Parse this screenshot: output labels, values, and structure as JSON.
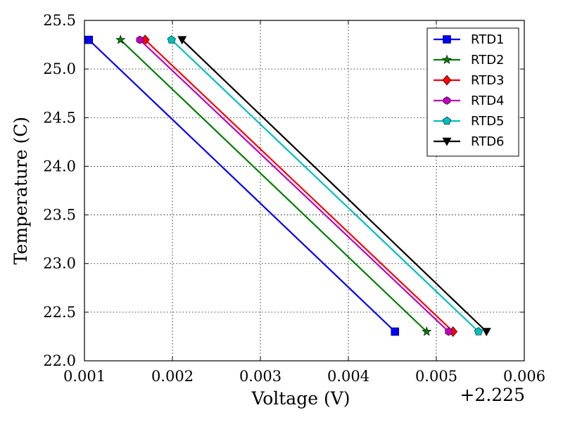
{
  "chart_data": {
    "type": "line",
    "xlabel": "Voltage (V)",
    "ylabel": "Temperature (C)",
    "x_offset_label": "+2.225",
    "x_tick_labels": [
      "0.001",
      "0.002",
      "0.003",
      "0.004",
      "0.005",
      "0.006"
    ],
    "y_tick_labels": [
      "22.0",
      "22.5",
      "23.0",
      "23.5",
      "24.0",
      "24.5",
      "25.0",
      "25.5"
    ],
    "xlim": [
      2.226,
      2.231
    ],
    "ylim": [
      22.0,
      25.5
    ],
    "grid": true,
    "legend_position": "top-right",
    "series": [
      {
        "name": "RTD1",
        "color": "#0000ff",
        "marker": "square",
        "x": [
          2.22605,
          2.22953
        ],
        "y": [
          25.3,
          22.3
        ]
      },
      {
        "name": "RTD2",
        "color": "#008000",
        "marker": "star",
        "x": [
          2.22641,
          2.22989
        ],
        "y": [
          25.3,
          22.3
        ]
      },
      {
        "name": "RTD3",
        "color": "#ff0000",
        "marker": "diamond",
        "x": [
          2.22669,
          2.23019
        ],
        "y": [
          25.3,
          22.3
        ]
      },
      {
        "name": "RTD4",
        "color": "#bf00bf",
        "marker": "hexagon",
        "x": [
          2.22663,
          2.23014
        ],
        "y": [
          25.3,
          22.3
        ]
      },
      {
        "name": "RTD5",
        "color": "#00bfbf",
        "marker": "pentagon",
        "x": [
          2.22699,
          2.23048
        ],
        "y": [
          25.3,
          22.3
        ]
      },
      {
        "name": "RTD6",
        "color": "#000000",
        "marker": "triangle-down",
        "x": [
          2.22711,
          2.23057
        ],
        "y": [
          25.3,
          22.3
        ]
      }
    ]
  }
}
